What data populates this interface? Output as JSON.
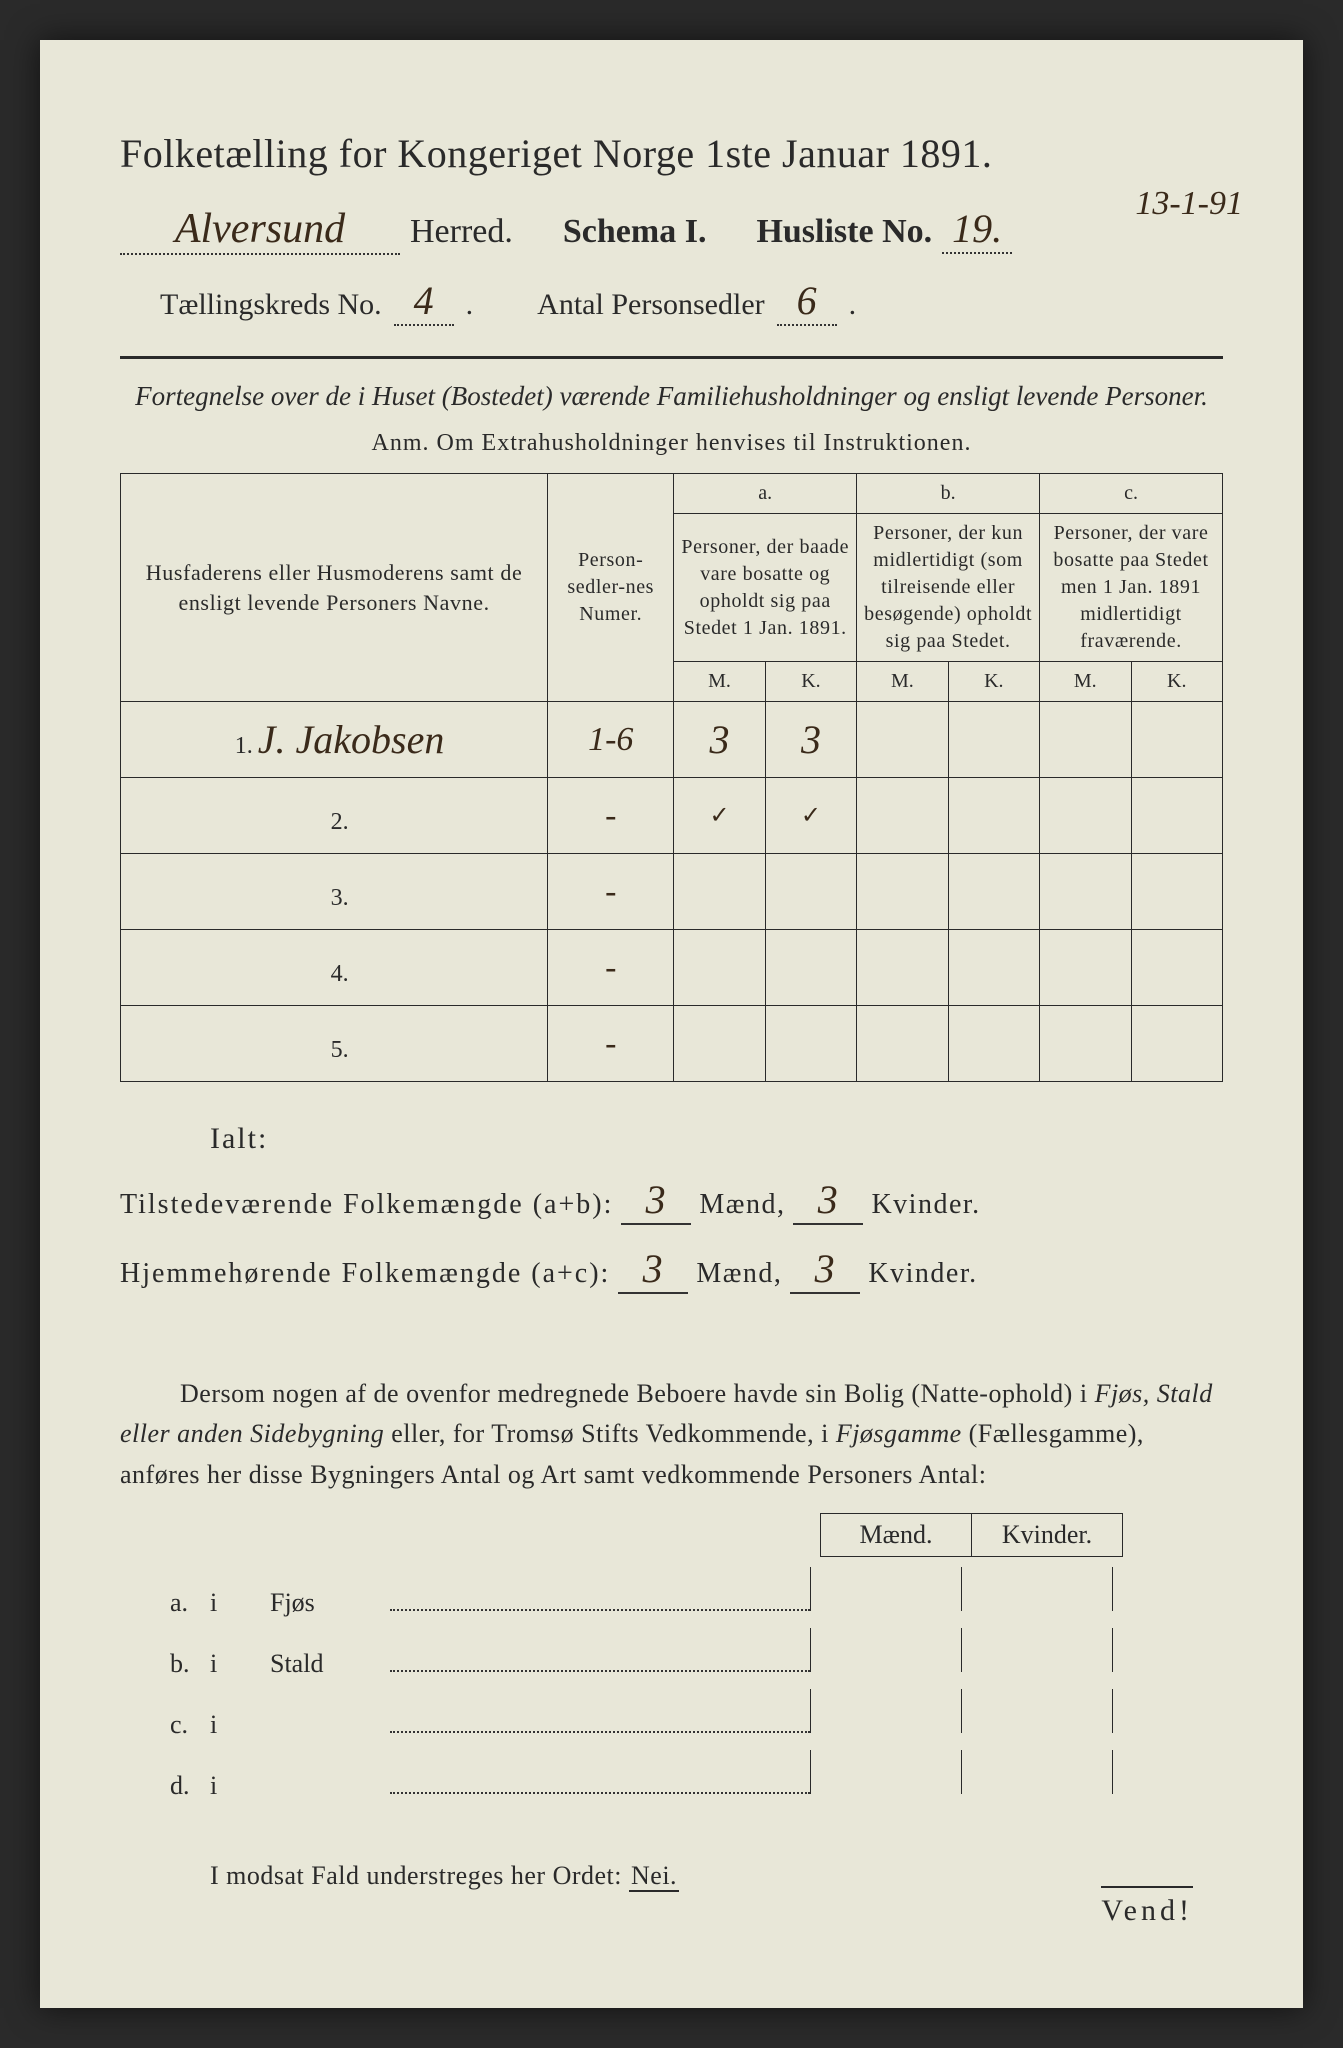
{
  "title": "Folketælling for Kongeriget Norge 1ste Januar 1891.",
  "header": {
    "herred_value": "Alversund",
    "herred_label": "Herred.",
    "schema_label": "Schema I.",
    "husliste_label": "Husliste No.",
    "husliste_no": "19.",
    "date_annot": "13-1-91",
    "kreds_label": "Tællingskreds No.",
    "kreds_no": "4",
    "antal_label": "Antal Personsedler",
    "antal_no": "6"
  },
  "subtitle": "Fortegnelse over de i Huset (Bostedet) værende Familiehusholdninger og ensligt levende Personer.",
  "anm": "Anm.  Om Extrahusholdninger henvises til Instruktionen.",
  "table": {
    "col_name": "Husfaderens eller Husmoderens samt de ensligt levende Personers Navne.",
    "col_num": "Person-sedler-nes Numer.",
    "group_a": "a.",
    "desc_a": "Personer, der baade vare bosatte og opholdt sig paa Stedet 1 Jan. 1891.",
    "group_b": "b.",
    "desc_b": "Personer, der kun midlertidigt (som tilreisende eller besøgende) opholdt sig paa Stedet.",
    "group_c": "c.",
    "desc_c": "Personer, der vare bosatte paa Stedet men 1 Jan. 1891 midlertidigt fraværende.",
    "M": "M.",
    "K": "K.",
    "rows": [
      {
        "n": "1.",
        "name": "J. Jakobsen",
        "num": "1-6",
        "aM": "3",
        "aK": "3",
        "bM": "",
        "bK": "",
        "cM": "",
        "cK": ""
      },
      {
        "n": "2.",
        "name": "",
        "num": "-",
        "aM": "✓",
        "aK": "✓",
        "bM": "",
        "bK": "",
        "cM": "",
        "cK": ""
      },
      {
        "n": "3.",
        "name": "",
        "num": "-",
        "aM": "",
        "aK": "",
        "bM": "",
        "bK": "",
        "cM": "",
        "cK": ""
      },
      {
        "n": "4.",
        "name": "",
        "num": "-",
        "aM": "",
        "aK": "",
        "bM": "",
        "bK": "",
        "cM": "",
        "cK": ""
      },
      {
        "n": "5.",
        "name": "",
        "num": "-",
        "aM": "",
        "aK": "",
        "bM": "",
        "bK": "",
        "cM": "",
        "cK": ""
      }
    ]
  },
  "ialt": "Ialt:",
  "sum1": {
    "label": "Tilstedeværende Folkemængde (a+b):",
    "m": "3",
    "mlabel": "Mænd,",
    "k": "3",
    "klabel": "Kvinder."
  },
  "sum2": {
    "label": "Hjemmehørende Folkemængde (a+c):",
    "m": "3",
    "mlabel": "Mænd,",
    "k": "3",
    "klabel": "Kvinder."
  },
  "para": {
    "p1": "Dersom nogen af de ovenfor medregnede Beboere havde sin Bolig (Natte-ophold) i ",
    "it1": "Fjøs, Stald eller anden Sidebygning",
    "p2": " eller, for Tromsø Stifts Vedkommende, i ",
    "it2": "Fjøsgamme",
    "p3": " (Fællesgamme), anføres her disse Bygningers Antal og Art samt vedkommende Personers Antal:"
  },
  "mk": {
    "m": "Mænd.",
    "k": "Kvinder."
  },
  "ab": [
    {
      "l": "a.",
      "i": "i",
      "w": "Fjøs"
    },
    {
      "l": "b.",
      "i": "i",
      "w": "Stald"
    },
    {
      "l": "c.",
      "i": "i",
      "w": ""
    },
    {
      "l": "d.",
      "i": "i",
      "w": ""
    }
  ],
  "nei": {
    "pre": "I modsat Fald understreges her Ordet: ",
    "word": "Nei."
  },
  "vend": "Vend!"
}
